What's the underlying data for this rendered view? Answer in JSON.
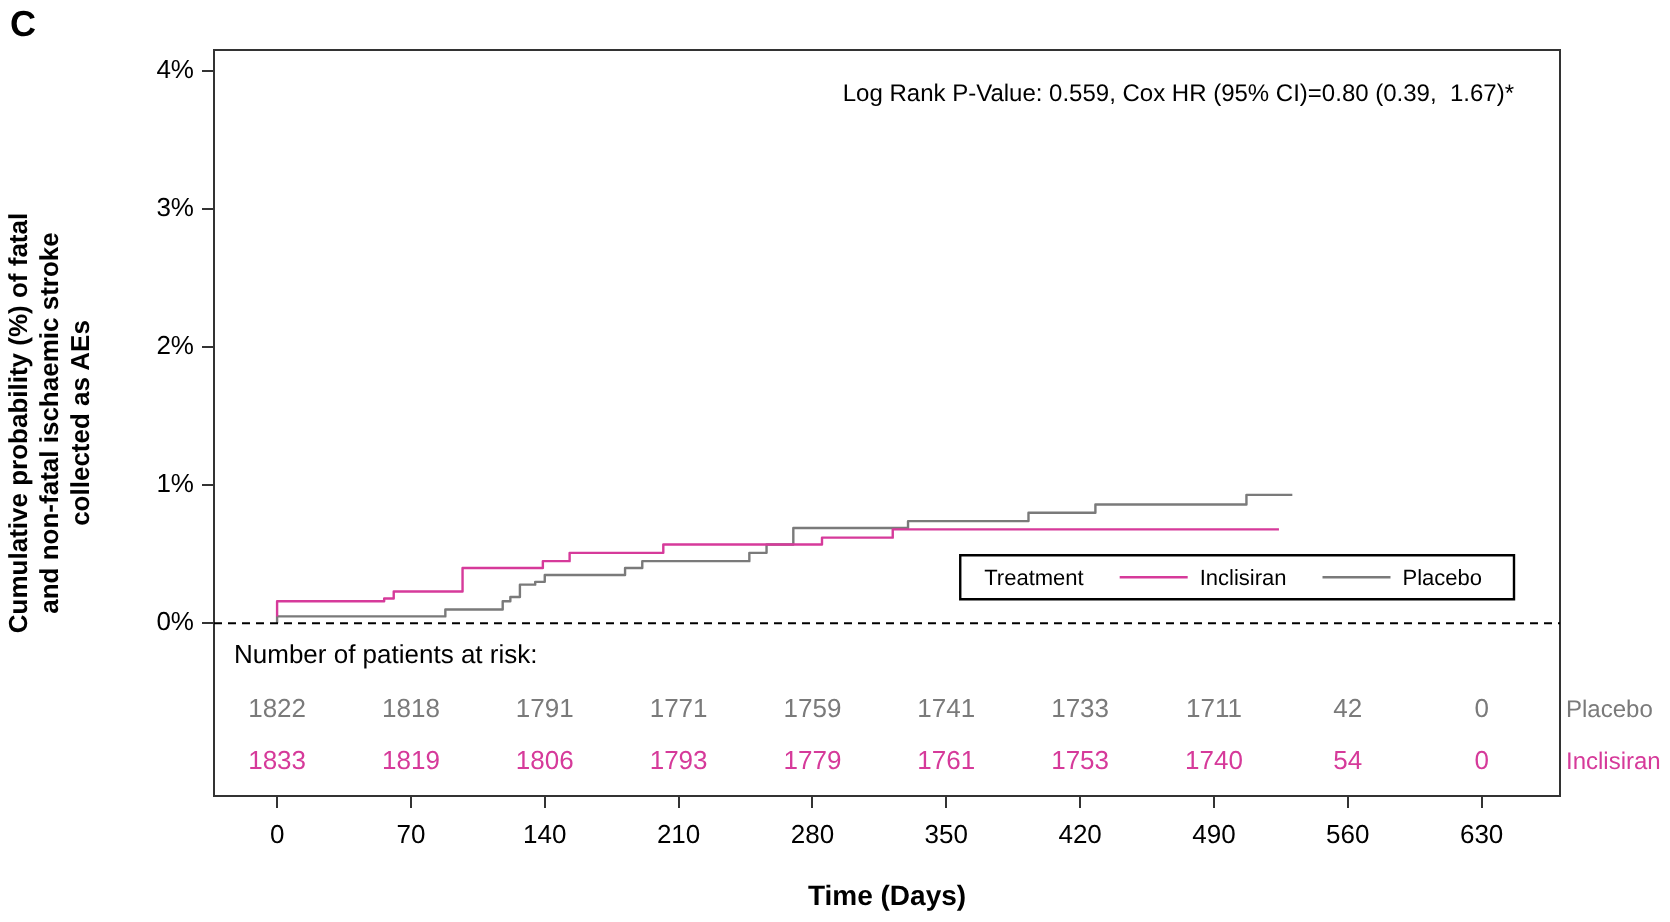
{
  "chart_data": {
    "type": "step",
    "title": "C",
    "xlabel": "Time (Days)",
    "ylabel": "Cumulative probability (%) of fatal\nand non-fatal ischaemic stroke\ncollected as AEs",
    "legend_title": "Treatment",
    "legend": "bottom right",
    "series": [
      {
        "name": "Inclisiran",
        "color": "#d63a9a",
        "x": [
          0,
          56,
          61,
          97,
          139,
          153,
          202,
          285,
          322,
          463,
          524
        ],
        "values": [
          0.05,
          0.16,
          0.18,
          0.23,
          0.4,
          0.45,
          0.51,
          0.57,
          0.62,
          0.68,
          0.68
        ]
      },
      {
        "name": "Placebo",
        "color": "#7a7a7a",
        "x": [
          0,
          88,
          118,
          122,
          127,
          135,
          140,
          182,
          191,
          247,
          256,
          270,
          330,
          393,
          428,
          507,
          531
        ],
        "values": [
          0,
          0.05,
          0.1,
          0.16,
          0.19,
          0.28,
          0.3,
          0.35,
          0.4,
          0.45,
          0.51,
          0.57,
          0.69,
          0.74,
          0.8,
          0.86,
          0.93
        ]
      }
    ],
    "xlim": [
      -33,
      671
    ],
    "xticks": [
      0,
      70,
      140,
      210,
      280,
      350,
      420,
      490,
      560,
      630
    ],
    "ylim": [
      -1.25,
      4.15
    ],
    "yticks": [
      {
        "value": 0,
        "label": "0%"
      },
      {
        "value": 1,
        "label": "1%"
      },
      {
        "value": 2,
        "label": "2%"
      },
      {
        "value": 3,
        "label": "3%"
      },
      {
        "value": 4,
        "label": "4%"
      }
    ],
    "ref_lines": [
      {
        "axis": "y",
        "value": 0,
        "line_style": "dashed",
        "color": "#000000"
      }
    ],
    "annotations": [
      "Log Rank P-Value: 0.559, Cox HR (95% CI)=0.80 (0.39,  1.67)*",
      "Number of patients at risk:",
      "1822",
      "1818",
      "1791",
      "1771",
      "1759",
      "1741",
      "1733",
      "1711",
      "42",
      "0",
      "Placebo",
      "1833",
      "1819",
      "1806",
      "1793",
      "1779",
      "1761",
      "1753",
      "1740",
      "54",
      "0",
      "Inclisiran"
    ]
  }
}
